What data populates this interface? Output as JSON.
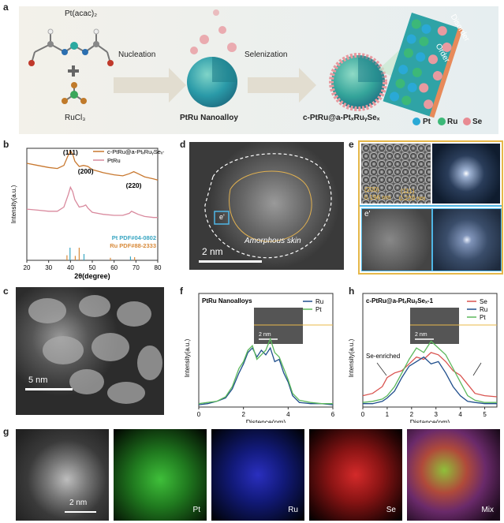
{
  "panel_letters": {
    "a": "a",
    "b": "b",
    "c": "c",
    "d": "d",
    "e": "e",
    "f": "f",
    "g": "g",
    "h": "h"
  },
  "panel_a": {
    "pt_precursor": "Pt(acac)₂",
    "ru_precursor": "RuCl₃",
    "step1": "Nucleation",
    "step2": "Selenization",
    "product1": "PtRu Nanoalloy",
    "product2": "c-PtRu@a-PtₓRuᵧSeₓ",
    "order": "Order",
    "disorder": "Disorder",
    "legend": [
      {
        "label": "Pt",
        "color": "#2aa9d6"
      },
      {
        "label": "Ru",
        "color": "#3cb878"
      },
      {
        "label": "Se",
        "color": "#e88a92"
      }
    ]
  },
  "panel_d": {
    "region": "e'",
    "skin": "Amorphous skin",
    "scale": "2 nm"
  },
  "panel_e": {
    "plane1": "(200)",
    "d1": "0.196 nm",
    "plane2": "(111)",
    "d2": "0.229 nm",
    "inset": "e'"
  },
  "panel_c": {
    "scale": "5 nm"
  },
  "panel_g": {
    "scale": "2 nm",
    "maps": [
      "Pt",
      "Ru",
      "Se",
      "Mix"
    ]
  },
  "chart_data": [
    {
      "id": "b",
      "type": "line",
      "xlabel": "2θ(degree)",
      "ylabel": "Intensity(a.u.)",
      "xlim": [
        20,
        80
      ],
      "xticks": [
        20,
        30,
        40,
        50,
        60,
        70,
        80
      ],
      "peak_labels": [
        {
          "text": "(111)",
          "x": 40
        },
        {
          "text": "(200)",
          "x": 47
        },
        {
          "text": "(220)",
          "x": 69
        }
      ],
      "series": [
        {
          "name": "c-PtRu@a-PtₓRuᵧSeₓ-1",
          "color": "#c8782f",
          "x": [
            20,
            25,
            30,
            34,
            37,
            39,
            40,
            41,
            42,
            44,
            46,
            48,
            50,
            55,
            60,
            64,
            67,
            69,
            71,
            74,
            78,
            80
          ],
          "y": [
            0.78,
            0.76,
            0.74,
            0.73,
            0.76,
            0.86,
            0.9,
            0.87,
            0.8,
            0.75,
            0.76,
            0.75,
            0.72,
            0.69,
            0.67,
            0.66,
            0.68,
            0.7,
            0.68,
            0.65,
            0.63,
            0.62
          ]
        },
        {
          "name": "PtRu",
          "color": "#d98a9e",
          "x": [
            20,
            25,
            30,
            34,
            37,
            39,
            40,
            41,
            42,
            44,
            46,
            47,
            48,
            50,
            55,
            60,
            64,
            67,
            68,
            69,
            71,
            74,
            78,
            80
          ],
          "y": [
            0.34,
            0.33,
            0.32,
            0.32,
            0.36,
            0.48,
            0.55,
            0.51,
            0.43,
            0.36,
            0.37,
            0.38,
            0.35,
            0.31,
            0.29,
            0.28,
            0.28,
            0.3,
            0.32,
            0.31,
            0.29,
            0.27,
            0.26,
            0.26
          ]
        }
      ],
      "references": [
        {
          "name": "Pt PDF#04-0802",
          "color": "#3aa6c2",
          "x": [
            39.8,
            46.2,
            67.5
          ],
          "h": [
            1.0,
            0.5,
            0.3
          ]
        },
        {
          "name": "Ru PDF#88-2333",
          "color": "#d88a3a",
          "x": [
            38.4,
            42.2,
            44.0,
            58.3,
            69.4
          ],
          "h": [
            0.4,
            0.35,
            1.0,
            0.2,
            0.25
          ]
        }
      ]
    },
    {
      "id": "f",
      "type": "line",
      "title": "PtRu Nanoalloys",
      "xlabel": "Distence(nm)",
      "ylabel": "Intensity(a.u.)",
      "xlim": [
        0,
        6
      ],
      "ylim": [
        0,
        1
      ],
      "xticks": [
        0,
        2,
        4,
        6
      ],
      "inset_scale": "2 nm",
      "series": [
        {
          "name": "Ru",
          "color": "#1f4e8c",
          "x": [
            0,
            0.4,
            0.8,
            1.2,
            1.5,
            1.8,
            2.0,
            2.2,
            2.4,
            2.6,
            2.8,
            3.0,
            3.2,
            3.4,
            3.6,
            3.8,
            4.0,
            4.2,
            4.5,
            5.0,
            5.5,
            6.0
          ],
          "y": [
            0.02,
            0.03,
            0.05,
            0.08,
            0.16,
            0.3,
            0.38,
            0.48,
            0.52,
            0.44,
            0.5,
            0.46,
            0.52,
            0.4,
            0.42,
            0.3,
            0.22,
            0.1,
            0.04,
            0.03,
            0.03,
            0.02
          ]
        },
        {
          "name": "Pt",
          "color": "#5cb85c",
          "x": [
            0,
            0.4,
            0.8,
            1.2,
            1.5,
            1.8,
            2.0,
            2.2,
            2.4,
            2.6,
            2.8,
            3.0,
            3.2,
            3.4,
            3.6,
            3.8,
            4.0,
            4.2,
            4.5,
            5.0,
            5.5,
            6.0
          ],
          "y": [
            0.03,
            0.04,
            0.05,
            0.09,
            0.18,
            0.34,
            0.4,
            0.5,
            0.54,
            0.42,
            0.46,
            0.5,
            0.6,
            0.48,
            0.44,
            0.34,
            0.24,
            0.12,
            0.06,
            0.04,
            0.03,
            0.03
          ]
        }
      ]
    },
    {
      "id": "h",
      "type": "line",
      "title": "c-PtRu@a-PtₓRuᵧSeₓ-1",
      "xlabel": "Distance(nm)",
      "ylabel": "Intensity(a.u.)",
      "xlim": [
        0,
        5.5
      ],
      "ylim": [
        0,
        1
      ],
      "xticks": [
        0,
        1,
        2,
        3,
        4,
        5
      ],
      "inset_scale": "2 nm",
      "annotation": "Se-enriched",
      "series": [
        {
          "name": "Se",
          "color": "#d9534f",
          "x": [
            0,
            0.4,
            0.8,
            1.0,
            1.3,
            1.6,
            1.9,
            2.2,
            2.5,
            2.8,
            3.1,
            3.4,
            3.7,
            4.0,
            4.3,
            4.6,
            5.0,
            5.5
          ],
          "y": [
            0.1,
            0.12,
            0.18,
            0.26,
            0.3,
            0.32,
            0.38,
            0.44,
            0.42,
            0.48,
            0.46,
            0.4,
            0.32,
            0.28,
            0.2,
            0.12,
            0.1,
            0.09
          ]
        },
        {
          "name": "Ru",
          "color": "#1f4e8c",
          "x": [
            0,
            0.4,
            0.8,
            1.0,
            1.3,
            1.6,
            1.9,
            2.2,
            2.5,
            2.8,
            3.1,
            3.4,
            3.7,
            4.0,
            4.3,
            4.6,
            5.0,
            5.5
          ],
          "y": [
            0.03,
            0.03,
            0.05,
            0.08,
            0.14,
            0.26,
            0.36,
            0.4,
            0.44,
            0.38,
            0.4,
            0.3,
            0.18,
            0.1,
            0.05,
            0.04,
            0.03,
            0.03
          ]
        },
        {
          "name": "Pt",
          "color": "#5cb85c",
          "x": [
            0,
            0.4,
            0.8,
            1.0,
            1.3,
            1.6,
            1.9,
            2.2,
            2.5,
            2.8,
            3.1,
            3.4,
            3.7,
            4.0,
            4.3,
            4.6,
            5.0,
            5.5
          ],
          "y": [
            0.04,
            0.05,
            0.07,
            0.1,
            0.18,
            0.3,
            0.42,
            0.52,
            0.48,
            0.58,
            0.52,
            0.46,
            0.34,
            0.22,
            0.1,
            0.06,
            0.04,
            0.04
          ]
        }
      ]
    }
  ]
}
